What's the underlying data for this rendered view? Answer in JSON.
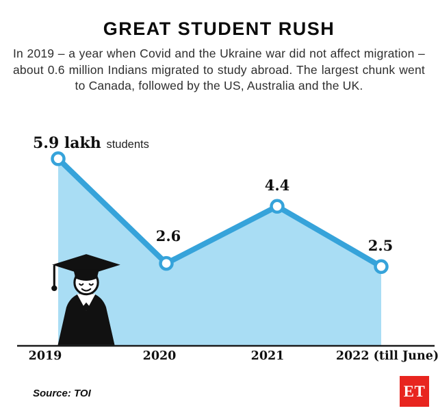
{
  "title": "GREAT STUDENT RUSH",
  "subtitle": "In 2019 – a year when Covid and the Ukraine war did not affect migration – about 0.6 million Indians migrated to study abroad. The largest chunk went to Canada, followed by the US, Australia and the UK.",
  "chart_data": {
    "type": "area",
    "title": "GREAT STUDENT RUSH",
    "categories": [
      "2019",
      "2020",
      "2021",
      "2022 (till June)"
    ],
    "values": [
      5.9,
      2.6,
      4.4,
      2.5
    ],
    "unit": "lakh students",
    "point_labels": [
      "5.9 lakh",
      "2.6",
      "4.4",
      "2.5"
    ],
    "first_point_unit_word": "students",
    "ylim": [
      0,
      6.5
    ],
    "legend": "none",
    "grid": "off",
    "colors": {
      "line": "#36a3da",
      "fill": "#a9ddf4",
      "marker": "#ffffff",
      "axis": "#1a1a1a"
    }
  },
  "footer": {
    "source": "Source: TOI",
    "logo_text": "ET",
    "logo_color": "#e8251f"
  }
}
